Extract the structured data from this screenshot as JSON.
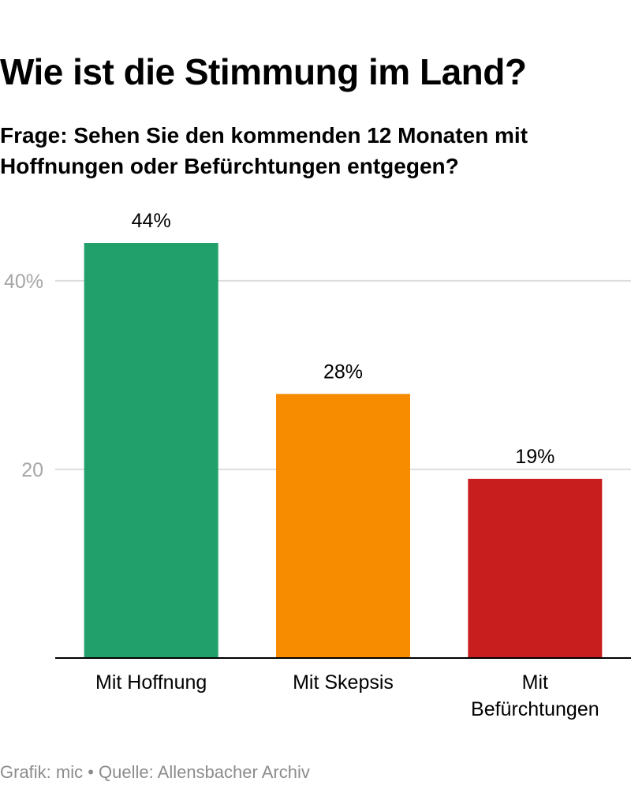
{
  "title": "Wie ist die Stimmung im Land?",
  "subtitle": "Frage: Sehen Sie den kommenden 12 Monaten mit Hoffnungen oder Befürchtungen entgegen?",
  "footer": "Grafik: mic • Quelle: Allensbacher Archiv",
  "chart_data": {
    "type": "bar",
    "categories": [
      [
        "Mit Hoffnung"
      ],
      [
        "Mit Skepsis"
      ],
      [
        "Mit",
        "Befürchtungen"
      ]
    ],
    "values": [
      44,
      28,
      19
    ],
    "value_labels": [
      "44%",
      "28%",
      "19%"
    ],
    "colors": [
      "#22a06b",
      "#f78c00",
      "#c81e1e"
    ],
    "yticks": [
      {
        "value": 20,
        "label": "20"
      },
      {
        "value": 40,
        "label": "40%"
      }
    ],
    "ylim": [
      0,
      44
    ],
    "grid": true,
    "xlabel": "",
    "ylabel": ""
  }
}
